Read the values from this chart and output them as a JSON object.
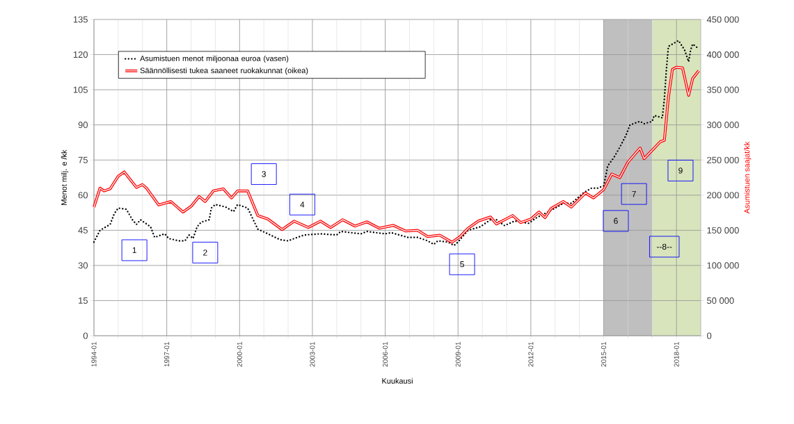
{
  "chart_data": {
    "type": "line",
    "xlabel": "Kuukausi",
    "ylabel": "Menot milj. e /kk",
    "y2label": "Asumistuen saajat/kk",
    "xlim": [
      "1994-01",
      "2019-01"
    ],
    "xticks": [
      "1994-01",
      {
        "value": "1995-01",
        "label": null
      },
      {
        "value": "1996-01",
        "label": null
      },
      "1997-01",
      {
        "value": "1998-01",
        "label": null
      },
      {
        "value": "1999-01",
        "label": null
      },
      "2000-01",
      {
        "value": "2001-01",
        "label": null
      },
      {
        "value": "2002-01",
        "label": null
      },
      "2003-01",
      {
        "value": "2004-01",
        "label": null
      },
      {
        "value": "2005-01",
        "label": null
      },
      "2006-01",
      {
        "value": "2007-01",
        "label": null
      },
      {
        "value": "2008-01",
        "label": null
      },
      "2009-01",
      {
        "value": "2010-01",
        "label": null
      },
      {
        "value": "2011-01",
        "label": null
      },
      "2012-01",
      {
        "value": "2013-01",
        "label": null
      },
      {
        "value": "2014-01",
        "label": null
      },
      "2015-01",
      {
        "value": "2016-01",
        "label": null
      },
      {
        "value": "2017-01",
        "label": null
      },
      "2018-01",
      {
        "value": "2019-01",
        "label": null
      }
    ],
    "ylim": [
      0,
      135
    ],
    "yticks": [
      0,
      15,
      30,
      45,
      60,
      75,
      90,
      105,
      120,
      135
    ],
    "y2lim": [
      0,
      450000
    ],
    "y2ticks": [
      0,
      {
        "value": 50000,
        "label": "50 000"
      },
      {
        "value": 100000,
        "label": "100 000"
      },
      {
        "value": 150000,
        "label": "150 000"
      },
      {
        "value": 200000,
        "label": "200 000"
      },
      {
        "value": 250000,
        "label": "250 000"
      },
      {
        "value": 300000,
        "label": "300 000"
      },
      {
        "value": 350000,
        "label": "350 000"
      },
      {
        "value": 400000,
        "label": "400 000"
      },
      {
        "value": 450000,
        "label": "450 000"
      }
    ],
    "grid": true,
    "legend": "top left",
    "series": [
      {
        "name": "Asumistuen menot miljoonaa euroa (vasen)",
        "color": "#000000",
        "line_style": "dotted",
        "x": [
          "1994-01",
          "1994-04",
          "1994-09",
          "1994-11",
          "1995-01",
          "1995-05",
          "1995-08",
          "1995-10",
          "1995-12",
          "1996-05",
          "1996-07",
          "1996-12",
          "1997-02",
          "1997-07",
          "1997-10",
          "1997-12",
          "1998-02",
          "1998-04",
          "1998-06",
          "1998-10",
          "1998-11",
          "1999-01",
          "1999-06",
          "1999-10",
          "1999-12",
          "2000-05",
          "2000-10",
          "2001-03",
          "2001-09",
          "2002-01",
          "2002-04",
          "2002-09",
          "2003-05",
          "2004-01",
          "2004-03",
          "2005-01",
          "2005-04",
          "2006-01",
          "2006-04",
          "2006-12",
          "2007-05",
          "2007-10",
          "2008-01",
          "2008-03",
          "2008-08",
          "2008-11",
          "2009-01",
          "2009-06",
          "2009-12",
          "2010-05",
          "2010-08",
          "2010-12",
          "2011-05",
          "2011-08",
          "2011-12",
          "2012-04",
          "2012-11",
          "2013-05",
          "2013-09",
          "2014-03",
          "2014-07",
          "2014-10",
          "2015-01",
          "2015-02",
          "2015-03",
          "2015-06",
          "2015-09",
          "2015-12",
          "2016-02",
          "2016-07",
          "2016-09",
          "2017-01",
          "2017-02",
          "2017-06",
          "2017-07",
          "2017-08",
          "2017-09",
          "2017-12",
          "2018-02",
          "2018-05",
          "2018-07",
          "2018-08",
          "2018-09",
          "2018-12"
        ],
        "values": [
          40,
          45,
          47.5,
          52,
          54.5,
          54,
          49.5,
          47.5,
          49.5,
          46.5,
          42,
          43.5,
          41.5,
          40.5,
          40.5,
          43,
          41.5,
          46.5,
          48.5,
          49.5,
          54.5,
          56,
          55,
          53,
          56,
          54.5,
          45.5,
          43.5,
          41,
          40.5,
          41.5,
          43,
          43.5,
          43,
          44.5,
          43.5,
          44.5,
          43.5,
          44,
          42,
          42,
          40.5,
          39,
          40.5,
          40,
          38.5,
          40,
          45,
          46.5,
          49.5,
          49.5,
          47,
          49,
          48.5,
          48,
          50.5,
          53.5,
          56.5,
          56.5,
          61,
          63,
          63,
          64,
          68,
          72.5,
          76,
          80.5,
          85.5,
          90,
          91.5,
          90.5,
          91.5,
          94,
          93,
          101,
          113.5,
          123.5,
          125,
          126,
          122,
          117,
          122,
          124.5,
          122.5
        ]
      },
      {
        "name": "Säännöllisesti tukea saaneet ruokakunnat (oikea)",
        "color": "#ff0000",
        "axis": "y2",
        "x": [
          "1994-01",
          "1994-04",
          "1994-06",
          "1994-09",
          "1995-01",
          "1995-04",
          "1995-10",
          "1996-01",
          "1996-03",
          "1996-09",
          "1997-03",
          "1997-09",
          "1998-01",
          "1998-05",
          "1998-08",
          "1998-12",
          "1999-05",
          "1999-09",
          "1999-12",
          "2000-05",
          "2000-10",
          "2001-03",
          "2001-10",
          "2002-04",
          "2002-11",
          "2003-05",
          "2003-10",
          "2004-04",
          "2004-10",
          "2005-04",
          "2005-10",
          "2006-05",
          "2006-11",
          "2007-05",
          "2007-10",
          "2008-04",
          "2008-10",
          "2009-02",
          "2009-06",
          "2009-11",
          "2010-05",
          "2010-08",
          "2011-04",
          "2011-08",
          "2012-01",
          "2012-05",
          "2012-08",
          "2012-11",
          "2013-05",
          "2013-09",
          "2014-04",
          "2014-08",
          "2015-01",
          "2015-05",
          "2015-09",
          "2016-01",
          "2016-07",
          "2016-09",
          "2017-02",
          "2017-05",
          "2017-07",
          "2017-09",
          "2017-11",
          "2018-01",
          "2018-04",
          "2018-07",
          "2018-09",
          "2018-12"
        ],
        "values": [
          183000,
          210000,
          206000,
          209000,
          227000,
          233000,
          211000,
          215000,
          210000,
          186000,
          191000,
          176000,
          184000,
          198000,
          191000,
          206000,
          209000,
          196000,
          206000,
          206000,
          171000,
          166000,
          151000,
          163000,
          154000,
          163000,
          154000,
          165000,
          156000,
          162000,
          153000,
          157000,
          149000,
          150000,
          141000,
          143000,
          133000,
          141000,
          153000,
          163000,
          169000,
          159000,
          171000,
          161000,
          166000,
          176000,
          168000,
          181000,
          191000,
          183000,
          203000,
          196000,
          208000,
          230000,
          225000,
          247000,
          267000,
          252000,
          267000,
          276000,
          278000,
          339000,
          379000,
          382000,
          381000,
          342000,
          366000,
          377000
        ]
      }
    ],
    "bands": [
      {
        "axis": "x",
        "from": "2015-01",
        "to": "2017-01",
        "color": "#bfbfbf"
      },
      {
        "axis": "x",
        "from": "2017-01",
        "to": "2019-01",
        "color": "#d8e4bc"
      }
    ],
    "annotations": [
      {
        "text": "1",
        "x": "1995-09",
        "y": 36.5
      },
      {
        "text": "2",
        "x": "1998-08",
        "y": 35.5
      },
      {
        "text": "3",
        "x": "2001-01",
        "y": 69
      },
      {
        "text": "4",
        "x": "2002-08",
        "y": 56
      },
      {
        "text": "5",
        "x": "2009-03",
        "y": 30.5
      },
      {
        "text": "6",
        "x": "2015-07",
        "y": 49
      },
      {
        "text": "7",
        "x": "2016-04",
        "y": 60.5
      },
      {
        "text": "--8--",
        "x": "2017-07",
        "y": 38
      },
      {
        "text": "9",
        "x": "2018-03",
        "y": 70.5
      }
    ]
  }
}
